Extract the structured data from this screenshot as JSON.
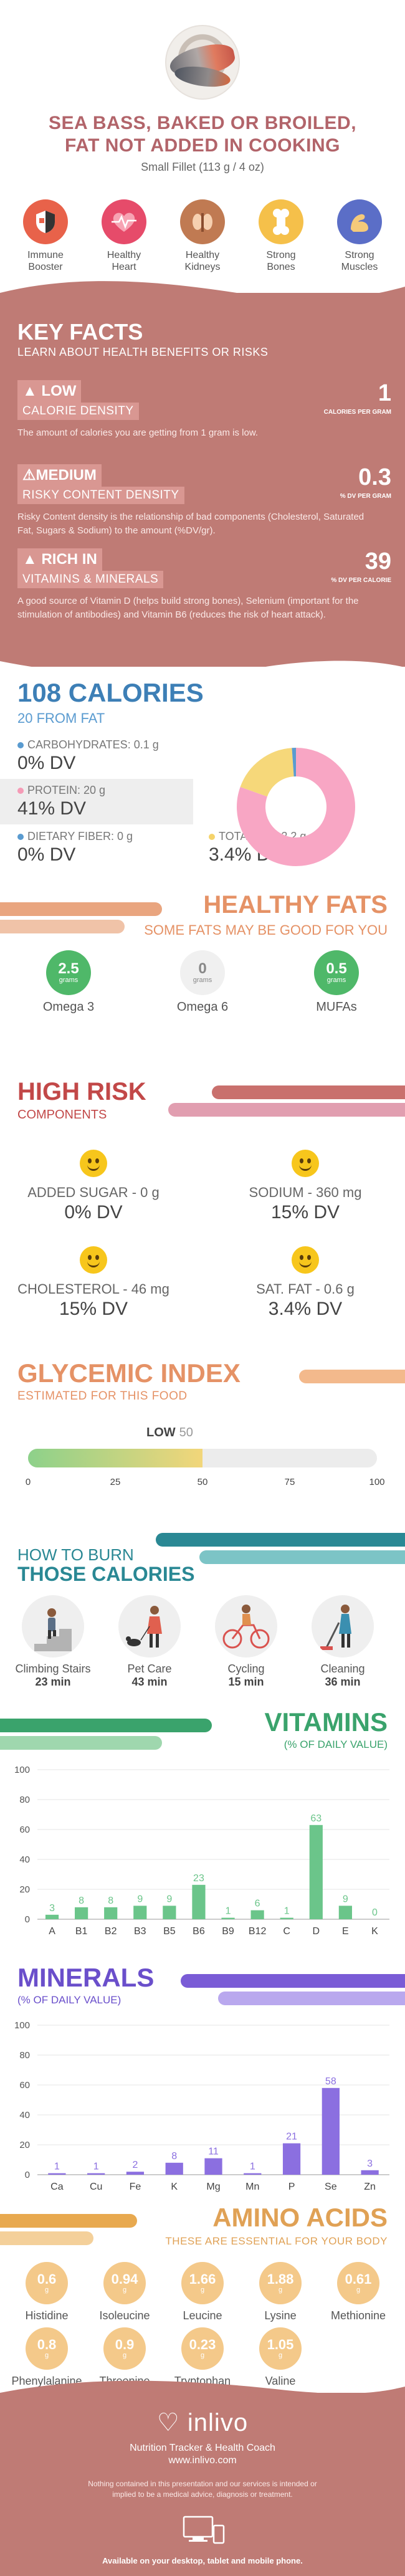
{
  "header": {
    "title_line1": "SEA BASS, BAKED OR BROILED,",
    "title_line2": "FAT NOT ADDED IN COOKING",
    "serving": "Small Fillet (113 g / 4 oz)"
  },
  "benefits": [
    {
      "label1": "Immune",
      "label2": "Booster",
      "color": "#e8624a",
      "icon": "shield-icon"
    },
    {
      "label1": "Healthy",
      "label2": "Heart",
      "color": "#e64b6a",
      "icon": "heart-icon"
    },
    {
      "label1": "Healthy",
      "label2": "Kidneys",
      "color": "#c07a52",
      "icon": "kidney-icon"
    },
    {
      "label1": "Strong",
      "label2": "Bones",
      "color": "#f5c04a",
      "icon": "bone-icon"
    },
    {
      "label1": "Strong",
      "label2": "Muscles",
      "color": "#5b6ec7",
      "icon": "muscle-icon"
    }
  ],
  "key_facts": {
    "title": "KEY FACTS",
    "subtitle": "LEARN ABOUT HEALTH BENEFITS OR RISKS",
    "facts": [
      {
        "level": "LOW",
        "name": "CALORIE DENSITY",
        "value": "1",
        "unit": "CALORIES PER GRAM",
        "description": "The amount of calories you are getting from 1 gram is low.",
        "icon": "thumbs-up-icon"
      },
      {
        "level": "MEDIUM",
        "name": "RISKY CONTENT DENSITY",
        "value": "0.3",
        "unit": "% DV PER GRAM",
        "description": "Risky Content density is the relationship of bad components (Cholesterol, Saturated Fat, Sugars & Sodium) to the amount (%DV/gr).",
        "icon": "warning-icon"
      },
      {
        "level": "RICH IN",
        "name": "VITAMINS & MINERALS",
        "value": "39",
        "unit": "% DV PER CALORIE",
        "description": "A good source of Vitamin D (helps build strong bones), Selenium (important for the stimulation of antibodies) and Vitamin B6 (reduces the risk of heart attack).",
        "icon": "thumbs-up-icon"
      }
    ]
  },
  "calories": {
    "title": "108 CALORIES",
    "subtitle": "20 FROM FAT",
    "carbs": {
      "name": "CARBOHYDRATES: 0.1 g",
      "dv": "0% DV",
      "color": "#5a9bd0"
    },
    "protein": {
      "name": "PROTEIN: 20 g",
      "dv": "41% DV",
      "color": "#f59bb6"
    },
    "fiber": {
      "name": "DIETARY FIBER: 0 g",
      "dv": "0% DV",
      "color": "#5a9bd0"
    },
    "fat": {
      "name": "TOTAL FAT: 2.2 g",
      "dv": "3.4% DV",
      "color": "#f5d36b"
    }
  },
  "chart_data": [
    {
      "type": "pie",
      "categories": [
        "Protein",
        "Fat",
        "Carbohydrates"
      ],
      "values": [
        80.5,
        18.4,
        1.1
      ],
      "colors": [
        "#f8a6c4",
        "#f6d87a",
        "#5a9bd0"
      ]
    },
    {
      "type": "bar",
      "title": "VITAMINS",
      "subtitle": "(% OF DAILY VALUE)",
      "categories": [
        "A",
        "B1",
        "B2",
        "B3",
        "B5",
        "B6",
        "B9",
        "B12",
        "C",
        "D",
        "E",
        "K"
      ],
      "values": [
        3,
        8,
        8,
        9,
        9,
        23,
        1,
        6,
        1,
        63,
        9,
        0
      ],
      "ylim": [
        0,
        100
      ],
      "yticks": [
        0,
        20,
        40,
        60,
        80,
        100
      ],
      "color": "#6bc58a"
    },
    {
      "type": "bar",
      "title": "MINERALS",
      "subtitle": "(% OF DAILY VALUE)",
      "categories": [
        "Ca",
        "Cu",
        "Fe",
        "K",
        "Mg",
        "Mn",
        "P",
        "Se",
        "Zn"
      ],
      "values": [
        1,
        1,
        2,
        8,
        11,
        1,
        21,
        58,
        3
      ],
      "ylim": [
        0,
        100
      ],
      "yticks": [
        0,
        20,
        40,
        60,
        80,
        100
      ],
      "color": "#8b6fe0"
    }
  ],
  "fats": {
    "title": "HEALTHY FATS",
    "subtitle": "SOME FATS MAY BE GOOD FOR YOU",
    "items": [
      {
        "value": "2.5",
        "unit": "grams",
        "name": "Omega 3",
        "color": "#4fb869"
      },
      {
        "value": "0",
        "unit": "grams",
        "name": "Omega 6",
        "color": "#f0f0f0"
      },
      {
        "value": "0.5",
        "unit": "grams",
        "name": "MUFAs",
        "color": "#4fb869"
      }
    ]
  },
  "risk": {
    "title": "HIGH RISK",
    "subtitle": "COMPONENTS",
    "items": [
      {
        "name": "ADDED SUGAR - 0 g",
        "dv": "0% DV"
      },
      {
        "name": "SODIUM - 360 mg",
        "dv": "15% DV"
      },
      {
        "name": "CHOLESTEROL - 46 mg",
        "dv": "15% DV"
      },
      {
        "name": "SAT. FAT - 0.6 g",
        "dv": "3.4% DV"
      }
    ]
  },
  "glycemic": {
    "title": "GLYCEMIC INDEX",
    "subtitle": "ESTIMATED FOR THIS FOOD",
    "level": "LOW",
    "value": 50,
    "value_label": "50",
    "ticks": [
      "0",
      "25",
      "50",
      "75",
      "100"
    ]
  },
  "burn": {
    "title1": "HOW TO BURN",
    "title2": "THOSE CALORIES",
    "items": [
      {
        "name": "Climbing Stairs",
        "time": "23 min",
        "icon": "stairs-icon"
      },
      {
        "name": "Pet Care",
        "time": "43 min",
        "icon": "dog-walk-icon"
      },
      {
        "name": "Cycling",
        "time": "15 min",
        "icon": "bicycle-icon"
      },
      {
        "name": "Cleaning",
        "time": "36 min",
        "icon": "vacuum-icon"
      }
    ]
  },
  "amino": {
    "title": "AMINO ACIDS",
    "subtitle": "THESE ARE ESSENTIAL FOR YOUR BODY",
    "unit": "g",
    "items": [
      {
        "value": "0.6",
        "name": "Histidine"
      },
      {
        "value": "0.94",
        "name": "Isoleucine"
      },
      {
        "value": "1.66",
        "name": "Leucine"
      },
      {
        "value": "1.88",
        "name": "Lysine"
      },
      {
        "value": "0.61",
        "name": "Methionine"
      },
      {
        "value": "0.8",
        "name": "Phenylalanine"
      },
      {
        "value": "0.9",
        "name": "Threonine"
      },
      {
        "value": "0.23",
        "name": "Tryptophan"
      },
      {
        "value": "1.05",
        "name": "Valine"
      }
    ]
  },
  "footer": {
    "brand": "inlivo",
    "tagline": "Nutrition Tracker & Health Coach",
    "url": "www.inlivo.com",
    "disclaimer": "Nothing contained in this presentation and our services is intended or implied to be a medical advice, diagnosis or treatment.",
    "available": "Available on your desktop, tablet and mobile phone."
  }
}
